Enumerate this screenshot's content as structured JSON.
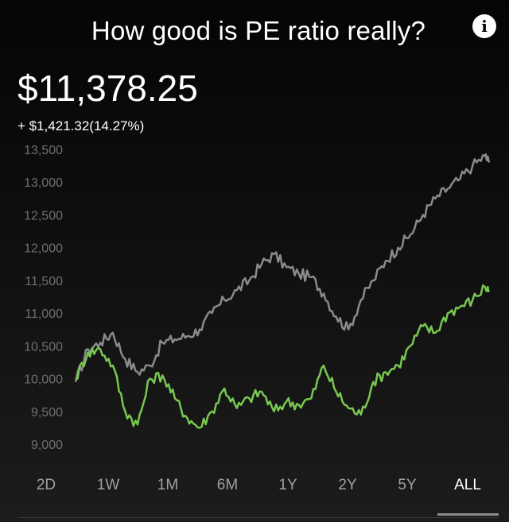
{
  "header": {
    "title": "How good is PE ratio really?",
    "info_icon": "info-icon"
  },
  "summary": {
    "price": "$11,378.25",
    "change": "+ $1,421.32(14.27%)"
  },
  "range_tabs": [
    {
      "label": "2D",
      "active": false
    },
    {
      "label": "1W",
      "active": false
    },
    {
      "label": "1M",
      "active": false
    },
    {
      "label": "6M",
      "active": false
    },
    {
      "label": "1Y",
      "active": false
    },
    {
      "label": "2Y",
      "active": false
    },
    {
      "label": "5Y",
      "active": false
    },
    {
      "label": "ALL",
      "active": true
    }
  ],
  "colors": {
    "background": "#0b0b0b",
    "portfolio_line": "#78c850",
    "benchmark_line": "#8a8a8a",
    "tick_label": "#6f6f6f",
    "active_tab": "#ffffff",
    "inactive_tab": "#a0a0a0"
  },
  "chart_data": {
    "type": "line",
    "y_ticks": [
      "13,500",
      "13,000",
      "12,500",
      "12,000",
      "11,500",
      "11,000",
      "10,500",
      "10,000",
      "9,500",
      "9,000"
    ],
    "ylim": [
      8900,
      13600
    ],
    "xlim": [
      0,
      100
    ],
    "grid": false,
    "series": [
      {
        "color": "#8a8a8a",
        "x": [
          0,
          3,
          6,
          9,
          12,
          15,
          18,
          21,
          24,
          27,
          30,
          33,
          36,
          39,
          42,
          45,
          48,
          51,
          54,
          57,
          60,
          63,
          66,
          69,
          72,
          75,
          78,
          81,
          84,
          87,
          90,
          93,
          96,
          99,
          100
        ],
        "y": [
          9950,
          10450,
          10550,
          10700,
          10300,
          10100,
          10200,
          10550,
          10600,
          10650,
          10750,
          11000,
          11200,
          11350,
          11500,
          11750,
          11900,
          11700,
          11600,
          11550,
          11300,
          10950,
          10750,
          11200,
          11500,
          11800,
          12000,
          12200,
          12500,
          12750,
          12900,
          13050,
          13250,
          13400,
          13300
        ]
      },
      {
        "color": "#78c850",
        "x": [
          0,
          3,
          6,
          9,
          12,
          15,
          18,
          21,
          24,
          27,
          30,
          33,
          36,
          39,
          42,
          45,
          48,
          51,
          54,
          57,
          60,
          63,
          66,
          69,
          72,
          75,
          78,
          81,
          84,
          87,
          90,
          93,
          96,
          99,
          100
        ],
        "y": [
          10000,
          10400,
          10450,
          10200,
          9500,
          9300,
          10000,
          10050,
          9700,
          9400,
          9250,
          9500,
          9850,
          9550,
          9700,
          9800,
          9500,
          9650,
          9600,
          9700,
          10200,
          9800,
          9550,
          9450,
          9950,
          10100,
          10200,
          10500,
          10800,
          10700,
          11000,
          11100,
          11200,
          11400,
          11350
        ]
      }
    ]
  }
}
